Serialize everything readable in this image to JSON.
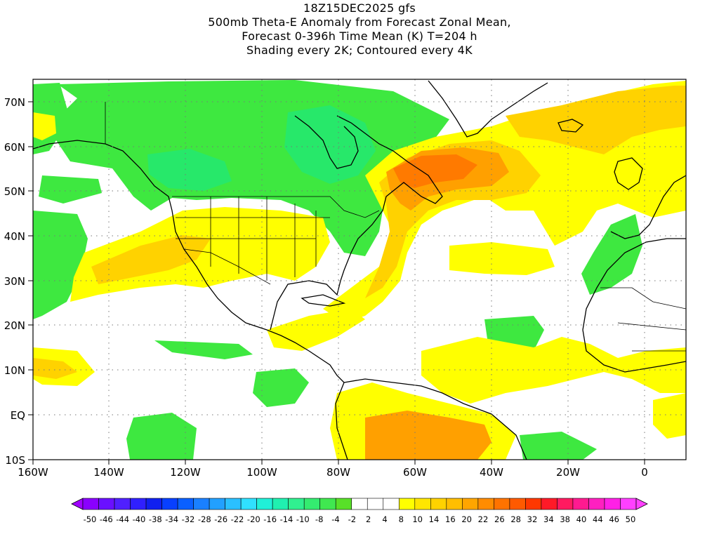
{
  "title": {
    "line1": "18Z15DEC2025 gfs",
    "line2": "500mb Theta-E Anomaly from Forecast Zonal Mean,",
    "line3": "Forecast 0-396h Time Mean (K) T=204 h",
    "line4": "Shading every 2K; Contoured every 4K"
  },
  "map": {
    "projection": "lat-lon",
    "lon_range": [
      -160,
      10
    ],
    "lat_range": [
      -10,
      75
    ],
    "lon_ticks": [
      "160W",
      "140W",
      "120W",
      "100W",
      "80W",
      "60W",
      "40W",
      "20W",
      "0"
    ],
    "lat_ticks": [
      "10S",
      "EQ",
      "10N",
      "20N",
      "30N",
      "40N",
      "50N",
      "60N",
      "70N"
    ],
    "gridlines": "dotted",
    "variable": "500mb Theta-E Anomaly (K)"
  },
  "colorbar": {
    "labels": [
      "-50",
      "-46",
      "-44",
      "-40",
      "-38",
      "-34",
      "-32",
      "-28",
      "-26",
      "-22",
      "-20",
      "-16",
      "-14",
      "-10",
      "-8",
      "-4",
      "-2",
      "2",
      "4",
      "8",
      "10",
      "14",
      "16",
      "20",
      "22",
      "26",
      "28",
      "32",
      "34",
      "38",
      "40",
      "44",
      "46",
      "50"
    ],
    "colors": [
      "#8a00ff",
      "#6a10ff",
      "#5020ff",
      "#3020ff",
      "#1020f0",
      "#0840ff",
      "#0a60ff",
      "#1a80ff",
      "#22a0ff",
      "#2ac0ff",
      "#30e0ff",
      "#20f0d8",
      "#20f0b0",
      "#30f090",
      "#34ec70",
      "#40e850",
      "#58e028",
      "#ffffff",
      "#ffffff",
      "#ffffff",
      "#ffff00",
      "#ffe600",
      "#ffd200",
      "#ffbe00",
      "#ffa500",
      "#ff8c00",
      "#ff7300",
      "#ff5a00",
      "#ff3800",
      "#ff1a28",
      "#ff1a60",
      "#ff1a90",
      "#ff20c0",
      "#ff20e6",
      "#ff40ff"
    ],
    "arrow_left_color": "#a000ff",
    "arrow_right_color": "#ff40ff"
  },
  "palette": {
    "green": "#3ee840",
    "green_mid": "#27e86a",
    "green_dark": "#20e6a0",
    "yellow": "#ffff00",
    "yellow_orange": "#ffd200",
    "orange": "#ffa000",
    "orange_dark": "#ff7a00",
    "coast": "#000000"
  }
}
